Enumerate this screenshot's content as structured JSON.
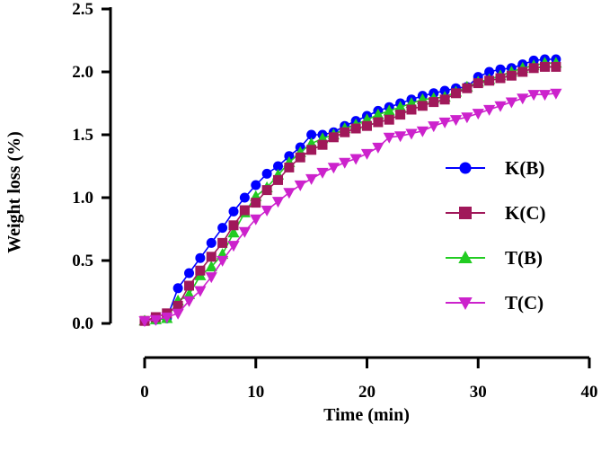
{
  "chart_data": {
    "type": "line",
    "title": "",
    "xlabel": "Time (min)",
    "ylabel": "Weight loss (%)",
    "xlim": [
      0,
      40
    ],
    "ylim": [
      0,
      2.5
    ],
    "xticks": [
      "0",
      "10",
      "20",
      "30",
      "40"
    ],
    "yticks": [
      "0.0",
      "0.5",
      "1.0",
      "1.5",
      "2.0",
      "2.5"
    ],
    "grid": false,
    "legend_position": "right",
    "x": [
      0,
      1,
      2,
      3,
      4,
      5,
      6,
      7,
      8,
      9,
      10,
      11,
      12,
      13,
      14,
      15,
      16,
      17,
      18,
      19,
      20,
      21,
      22,
      23,
      24,
      25,
      26,
      27,
      28,
      29,
      30,
      31,
      32,
      33,
      34,
      35,
      36,
      37
    ],
    "series": [
      {
        "name": "K(B)",
        "color": "#0000ff",
        "marker": "circle",
        "values": [
          0.02,
          0.03,
          0.04,
          0.28,
          0.4,
          0.52,
          0.64,
          0.76,
          0.89,
          1.0,
          1.1,
          1.19,
          1.25,
          1.33,
          1.4,
          1.5,
          1.5,
          1.52,
          1.57,
          1.61,
          1.65,
          1.69,
          1.72,
          1.75,
          1.78,
          1.81,
          1.83,
          1.85,
          1.87,
          1.88,
          1.96,
          2.0,
          2.02,
          2.03,
          2.06,
          2.09,
          2.1,
          2.1
        ]
      },
      {
        "name": "K(C)",
        "color": "#a0185a",
        "marker": "square",
        "values": [
          0.02,
          0.05,
          0.08,
          0.14,
          0.3,
          0.42,
          0.53,
          0.64,
          0.78,
          0.9,
          0.96,
          1.06,
          1.14,
          1.24,
          1.32,
          1.38,
          1.42,
          1.48,
          1.52,
          1.55,
          1.57,
          1.6,
          1.62,
          1.66,
          1.7,
          1.73,
          1.76,
          1.78,
          1.83,
          1.87,
          1.91,
          1.93,
          1.95,
          1.97,
          2.0,
          2.03,
          2.04,
          2.04
        ]
      },
      {
        "name": "T(B)",
        "color": "#22cc22",
        "marker": "triangle-up",
        "values": [
          0.02,
          0.03,
          0.04,
          0.18,
          0.23,
          0.38,
          0.45,
          0.55,
          0.72,
          0.88,
          1.01,
          1.08,
          1.18,
          1.28,
          1.36,
          1.43,
          1.47,
          1.5,
          1.55,
          1.58,
          1.62,
          1.66,
          1.69,
          1.72,
          1.75,
          1.78,
          1.79,
          1.8,
          1.84,
          1.88,
          1.92,
          1.94,
          1.97,
          2.0,
          2.03,
          2.05,
          2.07,
          2.07
        ]
      },
      {
        "name": "T(C)",
        "color": "#cc22cc",
        "marker": "triangle-down",
        "values": [
          0.02,
          0.03,
          0.05,
          0.08,
          0.18,
          0.26,
          0.37,
          0.5,
          0.62,
          0.73,
          0.83,
          0.9,
          0.97,
          1.04,
          1.1,
          1.15,
          1.2,
          1.24,
          1.28,
          1.31,
          1.35,
          1.4,
          1.48,
          1.49,
          1.51,
          1.53,
          1.57,
          1.6,
          1.62,
          1.64,
          1.67,
          1.7,
          1.73,
          1.76,
          1.79,
          1.82,
          1.82,
          1.83
        ]
      }
    ]
  }
}
